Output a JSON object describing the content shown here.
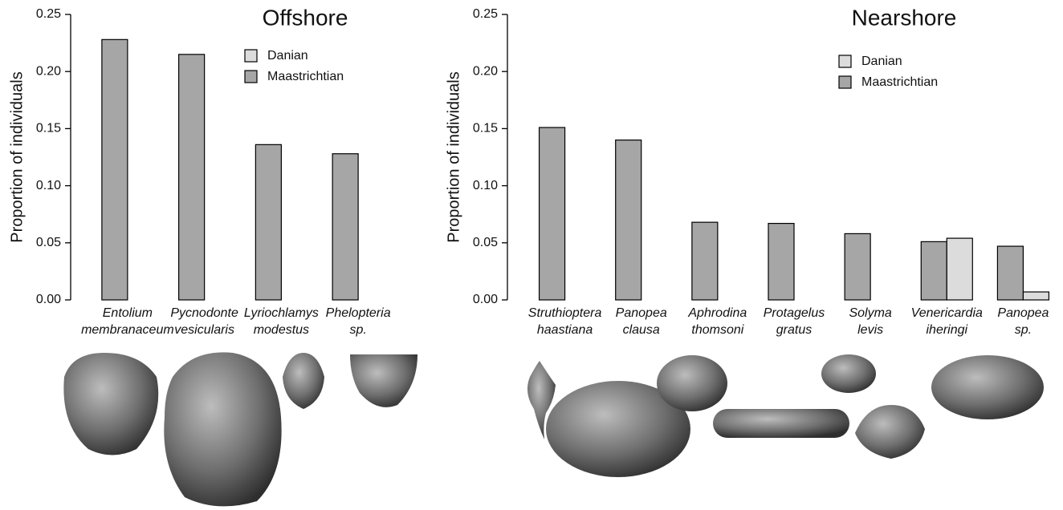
{
  "chart_data": [
    {
      "type": "bar",
      "title": "Offshore",
      "y_label": "Proportion of individuals",
      "categories": [
        "Entolium membranaceum",
        "Pycnodonte vesicularis",
        "Lyriochlamys modestus",
        "Phelopteria sp."
      ],
      "series": [
        {
          "name": "Maastrichtian",
          "color": "#a6a6a6",
          "values": [
            0.228,
            0.215,
            0.136,
            0.128
          ]
        },
        {
          "name": "Danian",
          "color": "#dcdcdc",
          "values": [
            0,
            0,
            0,
            0
          ]
        }
      ],
      "ylim": [
        0,
        0.25
      ],
      "yticks": [
        {
          "value": 0,
          "label": "0.00"
        },
        {
          "value": 0.05,
          "label": "0.05"
        },
        {
          "value": 0.1,
          "label": "0.10"
        },
        {
          "value": 0.15,
          "label": "0.15"
        },
        {
          "value": 0.2,
          "label": "0.20"
        },
        {
          "value": 0.25,
          "label": "0.25"
        }
      ]
    },
    {
      "type": "bar",
      "title": "Nearshore",
      "y_label": "Proportion of individuals",
      "categories": [
        "Struthioptera haastiana",
        "Panopea clausa",
        "Aphrodina thomsoni",
        "Protagelus gratus",
        "Solyma levis",
        "Venericardia iheringi",
        "Panopea sp."
      ],
      "series": [
        {
          "name": "Maastrichtian",
          "color": "#a6a6a6",
          "values": [
            0.151,
            0.14,
            0.068,
            0.067,
            0.058,
            0.051,
            0.047
          ]
        },
        {
          "name": "Danian",
          "color": "#dcdcdc",
          "values": [
            0,
            0,
            0,
            0,
            0,
            0.054,
            0.007
          ]
        }
      ],
      "ylim": [
        0,
        0.25
      ],
      "yticks": [
        {
          "value": 0,
          "label": "0.00"
        },
        {
          "value": 0.05,
          "label": "0.05"
        },
        {
          "value": 0.1,
          "label": "0.10"
        },
        {
          "value": 0.15,
          "label": "0.15"
        },
        {
          "value": 0.2,
          "label": "0.20"
        },
        {
          "value": 0.25,
          "label": "0.25"
        }
      ]
    }
  ]
}
